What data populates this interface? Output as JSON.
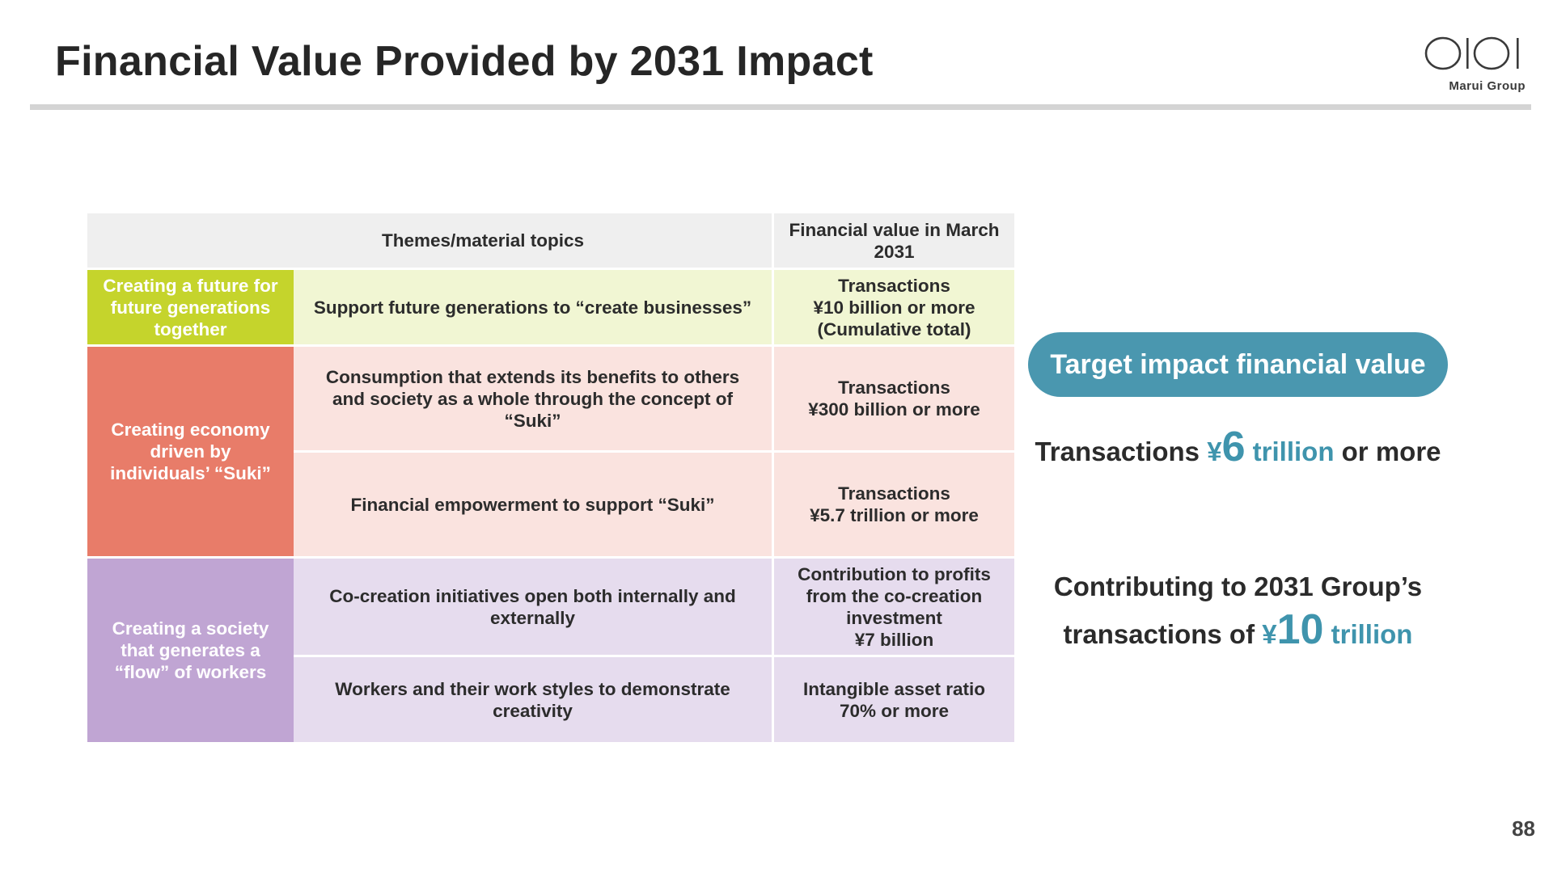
{
  "slide": {
    "title": "Financial Value Provided by 2031 Impact",
    "page_number": "88"
  },
  "logo": {
    "icon": "marui-oioi-logo-icon",
    "text": "Marui Group"
  },
  "table": {
    "header_themes": "Themes/material topics",
    "header_value": "Financial value in March 2031",
    "categories": [
      "Creating a future for future generations together",
      "Creating economy driven by individuals’ “Suki”",
      "Creating a society that generates a “flow” of workers"
    ],
    "rows": [
      {
        "topic": "Support future generations to “create businesses”",
        "value_lines": [
          "Transactions",
          "¥10 billion or more",
          "(Cumulative total)"
        ]
      },
      {
        "topic": "Consumption that extends its benefits to others and society as a whole through the concept of “Suki”",
        "value_lines": [
          "Transactions",
          "¥300 billion or more"
        ]
      },
      {
        "topic": "Financial empowerment to support “Suki”",
        "value_lines": [
          "Transactions",
          "¥5.7 trillion or more"
        ]
      },
      {
        "topic": "Co-creation initiatives open both internally and externally",
        "value_lines": [
          "Contribution to profits from the co-creation investment",
          "¥7 billion"
        ]
      },
      {
        "topic": "Workers and their work styles to demonstrate creativity",
        "value_lines": [
          "Intangible asset ratio",
          "70% or more"
        ]
      }
    ]
  },
  "target": {
    "pill_label": "Target impact financial value",
    "line1": {
      "prefix": "Transactions ",
      "currency": "¥",
      "amount": "6",
      "unit": " trillion",
      "suffix": " or more"
    },
    "line2": {
      "prefix": "Contributing to 2031 Group’s transactions of ",
      "currency": "¥",
      "amount": "10",
      "unit": " trillion"
    }
  },
  "colors": {
    "green": "#c5d42c",
    "coral": "#e87c69",
    "purple": "#c0a5d3",
    "teal": "#4a97af"
  }
}
